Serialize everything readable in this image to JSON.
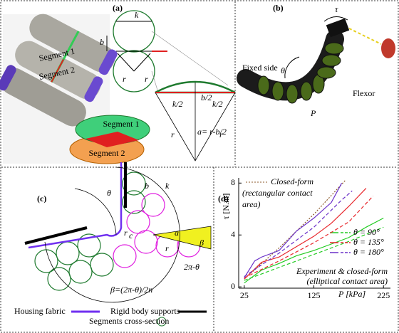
{
  "panel_a": {
    "label": "(a)",
    "photo_segment_1": "Segment 1",
    "photo_segment_2": "Segment 2",
    "k": "k",
    "b": "b",
    "r_left": "r",
    "r_right": "r",
    "half_b": "b/2",
    "half_k_left": "k/2",
    "half_k_right": "k/2",
    "a_formula": "a= r-b/2",
    "r_arc_left": "r",
    "r_arc_right": "r",
    "ellipse_segment_1": "Segment 1",
    "ellipse_segment_2": "Segment 2"
  },
  "panel_b": {
    "label": "(b)",
    "tau": "τ",
    "theta": "θ",
    "fixed_side": "Fixed side",
    "p": "P",
    "flexor": "Flexor"
  },
  "panel_c": {
    "label": "(c)",
    "theta": "θ",
    "b": "b",
    "k": "k",
    "rc_main": "r",
    "rc_sub": "c",
    "a": "a",
    "r": "r",
    "beta": "β",
    "complement": "2π-θ",
    "beta_formula": "β=(2π-θ)/2n",
    "legend": {
      "housing": "Housing fabric",
      "supports": "Rigid body supports",
      "cross_section": "Segments cross-section"
    }
  },
  "chart_data": {
    "type": "line",
    "label": "(d)",
    "y_label": "τ [N.m]",
    "x_label": "P [kPa]",
    "xlim": [
      17,
      235
    ],
    "xticks": [
      25,
      125,
      225
    ],
    "ylim": [
      -0.1,
      8.4
    ],
    "yticks": [
      0,
      4,
      8
    ],
    "rectangular": {
      "annotation": [
        "Closed-form",
        "(rectangular contact",
        "area)"
      ],
      "color": "#8b5a2b",
      "x": [
        25,
        75,
        125,
        170
      ],
      "values": [
        0.6,
        3.0,
        5.6,
        8.2
      ]
    },
    "elliptical_annotation": [
      "Experiment & closed-form",
      "(elliptical contact area)"
    ],
    "series": [
      {
        "name": "θ = 90°",
        "color": "#22cc22",
        "experiment": {
          "x": [
            25,
            50,
            75,
            100,
            125,
            150,
            175,
            200,
            225
          ],
          "values": [
            0.3,
            1.3,
            1.8,
            2.4,
            2.8,
            3.3,
            3.8,
            4.6,
            5.3
          ]
        },
        "closed_form": {
          "x": [
            25,
            75,
            125,
            175,
            225
          ],
          "values": [
            0.5,
            1.5,
            2.5,
            3.5,
            4.6
          ]
        }
      },
      {
        "name": "θ = 135°",
        "color": "#e8262b",
        "experiment": {
          "x": [
            25,
            50,
            75,
            100,
            125,
            150,
            175,
            200
          ],
          "values": [
            0.6,
            1.9,
            2.3,
            3.1,
            3.9,
            4.9,
            6.2,
            7.6
          ]
        },
        "closed_form": {
          "x": [
            25,
            75,
            125,
            175,
            210
          ],
          "values": [
            0.7,
            2.0,
            3.4,
            5.0,
            7.0
          ]
        }
      },
      {
        "name": "θ = 180°",
        "color": "#6a30c8",
        "experiment": {
          "x": [
            25,
            40,
            50,
            75,
            100,
            125,
            150,
            165
          ],
          "values": [
            0.7,
            2.0,
            2.3,
            2.8,
            4.3,
            5.3,
            6.5,
            8.0
          ]
        },
        "closed_form": {
          "x": [
            25,
            75,
            125,
            165,
            180
          ],
          "values": [
            0.8,
            2.6,
            4.6,
            6.7,
            7.4
          ]
        }
      }
    ]
  }
}
